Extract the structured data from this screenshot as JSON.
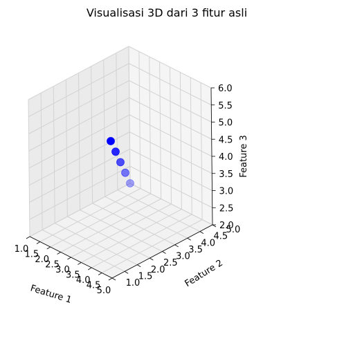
{
  "chart_data": {
    "type": "scatter",
    "title": "Visualisasi 3D dari 3 fitur asli",
    "xlabel": "Feature 1",
    "ylabel": "Feature 2",
    "zlabel": "Feature 3",
    "x_ticks": [
      "1.0",
      "1.5",
      "2.0",
      "2.5",
      "3.0",
      "3.5",
      "4.0",
      "4.5",
      "5.0"
    ],
    "y_ticks": [
      "1.0",
      "1.5",
      "2.0",
      "2.5",
      "3.0",
      "3.5",
      "4.0",
      "4.5",
      "5.0"
    ],
    "z_ticks": [
      "2.0",
      "2.5",
      "3.0",
      "3.5",
      "4.0",
      "4.5",
      "5.0",
      "5.5",
      "6.0"
    ],
    "xlim": [
      1.0,
      5.0
    ],
    "ylim": [
      1.0,
      5.0
    ],
    "zlim": [
      2.0,
      6.0
    ],
    "grid": true,
    "marker_color": "#0000ff",
    "points": [
      {
        "x": 1,
        "y": 5,
        "z": 2
      },
      {
        "x": 2,
        "y": 4,
        "z": 3
      },
      {
        "x": 3,
        "y": 3,
        "z": 4
      },
      {
        "x": 4,
        "y": 2,
        "z": 5
      },
      {
        "x": 5,
        "y": 1,
        "z": 6
      }
    ]
  }
}
